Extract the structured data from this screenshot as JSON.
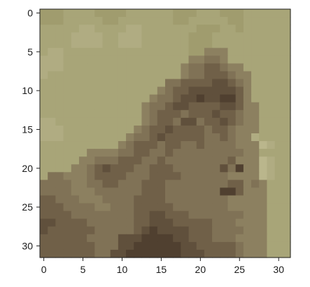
{
  "chart_data": {
    "type": "heatmap",
    "title": "",
    "xlabel": "",
    "ylabel": "",
    "grid": false,
    "xlim": [
      -0.5,
      31.5
    ],
    "ylim": [
      31.5,
      -0.5
    ],
    "y_axis_inverted": true,
    "image_size": [
      32,
      32
    ],
    "xticks": [
      "0",
      "5",
      "10",
      "15",
      "20",
      "25",
      "30"
    ],
    "yticks": [
      "0",
      "5",
      "10",
      "15",
      "20",
      "25",
      "30"
    ],
    "colors": {
      "background_grass": "#a9a57a",
      "grass_light": "#b7b48a",
      "grass_dark": "#928e63",
      "mane_mid": "#8a7a5e",
      "mane_dark": "#6e5c44",
      "shadow": "#4e3e2e",
      "highlight": "#c4bd97"
    },
    "content": "low-resolution 32x32 pixelated photo of a lion on grass",
    "palette": [
      [
        168,
        165,
        120
      ],
      [
        176,
        172,
        130
      ],
      [
        186,
        182,
        140
      ],
      [
        160,
        156,
        110
      ],
      [
        150,
        146,
        102
      ],
      [
        140,
        128,
        96
      ],
      [
        128,
        114,
        86
      ],
      [
        112,
        96,
        72
      ],
      [
        96,
        80,
        60
      ],
      [
        80,
        64,
        48
      ],
      [
        196,
        188,
        152
      ],
      [
        178,
        166,
        130
      ]
    ],
    "pixels": [
      "33300003333000000333000333000000",
      "33300000330000000330000033000000",
      "00000110000110000000333003000000",
      "00001111001110000003330000000000",
      "00001111001110000003330000000000",
      "01100000000000000003355500000000",
      "11100000000000000005566500000000",
      "11100000000000000056677655000000",
      "10000000000000000056677765500000",
      "00000000000000006677778876500000",
      "00000000000000056778888887500000",
      "00000000000000566788988997500000",
      "00000000000005667887777887550000",
      "00000000000005677767778776550000",
      "11000000000005677688677876550000",
      "11100000000056778777767765550000",
      "11100000000566787777766765510000",
      "00000000005677767766766665552100",
      "00000055556677667666666666550000",
      "00000556667776676666666675552100",
      "00005567877766777666666869552100",
      "06655567777666777766666655552100",
      "66665566776667776666666677565000",
      "66665556666667776666666997555000",
      "77666555666677776666666655555000",
      "77766665566677777666666655555000",
      "77776666666677887776666666555000",
      "88777766666677888777776665555000",
      "87777776666678988887776666555000",
      "77777766668889999887776665555000",
      "77777776668899999988777776555000",
      "77777776688999999988877776555000"
    ]
  }
}
